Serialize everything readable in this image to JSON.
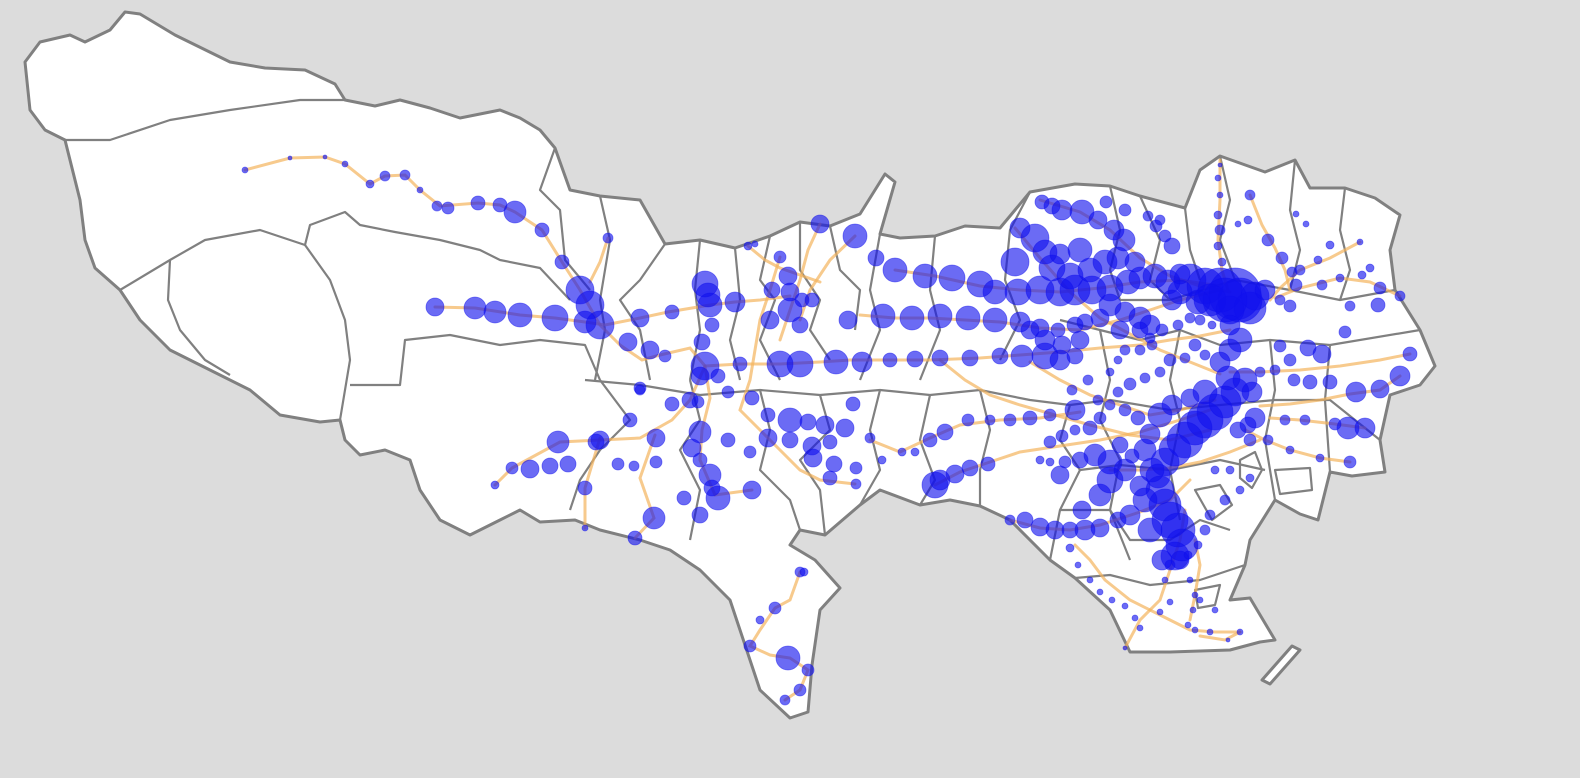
{
  "map": {
    "background_color": "#dcdcdc",
    "land_color": "#ffffff",
    "boundary_color": "#808080",
    "rail_line_color": "#f4b45c",
    "station_color": "#1010ee"
  }
}
